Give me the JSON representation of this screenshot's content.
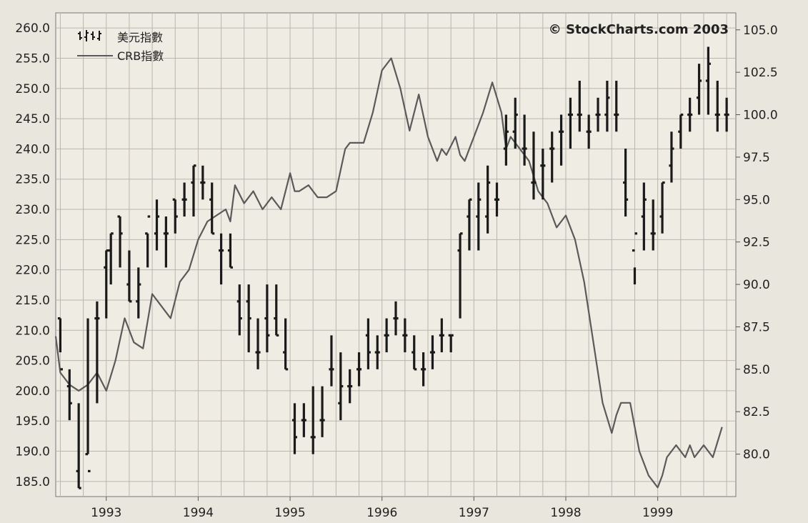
{
  "chart_data": {
    "type": "line",
    "title": "",
    "watermark": "© StockCharts.com 2003",
    "legend": {
      "placement": "top-left",
      "entries": [
        {
          "key": "usd",
          "label": "美元指數",
          "style": "ohlc-bars"
        },
        {
          "key": "crb",
          "label": "CRB指數",
          "style": "line"
        }
      ]
    },
    "x_axis": {
      "ticks": [
        "1993",
        "1994",
        "1995",
        "1996",
        "1997",
        "1998",
        "1999"
      ],
      "range": [
        1992.45,
        1999.85
      ]
    },
    "left_axis": {
      "series": "CRB指數",
      "range": [
        182.5,
        262.5
      ],
      "ticks": [
        "260.0",
        "255.0",
        "250.0",
        "245.0",
        "240.0",
        "235.0",
        "230.0",
        "225.0",
        "220.0",
        "215.0",
        "210.0",
        "205.0",
        "200.0",
        "195.0",
        "190.0",
        "185.0"
      ]
    },
    "right_axis": {
      "series": "美元指數",
      "range": [
        77.5,
        106.0
      ],
      "ticks": [
        "105.0",
        "102.5",
        "100.0",
        "97.5",
        "95.0",
        "92.5",
        "90.0",
        "87.5",
        "85.0",
        "82.5",
        "80.0"
      ]
    },
    "grid": true,
    "colors": {
      "background": "#e9e6dd",
      "plot_background": "#efece4",
      "grid": "#b9b6ae",
      "usd_bars": "#1a1a1a",
      "crb_line": "#5a5a5a"
    },
    "series": [
      {
        "name": "CRB指數",
        "axis": "left",
        "x": [
          1992.45,
          1992.5,
          1992.6,
          1992.7,
          1992.8,
          1992.9,
          1993.0,
          1993.1,
          1993.2,
          1993.3,
          1993.4,
          1993.5,
          1993.6,
          1993.7,
          1993.8,
          1993.9,
          1994.0,
          1994.1,
          1994.2,
          1994.3,
          1994.35,
          1994.4,
          1994.5,
          1994.6,
          1994.7,
          1994.8,
          1994.9,
          1995.0,
          1995.05,
          1995.1,
          1995.2,
          1995.3,
          1995.4,
          1995.5,
          1995.6,
          1995.65,
          1995.7,
          1995.8,
          1995.9,
          1996.0,
          1996.1,
          1996.2,
          1996.3,
          1996.4,
          1996.5,
          1996.6,
          1996.65,
          1996.7,
          1996.8,
          1996.85,
          1996.9,
          1996.95,
          1997.0,
          1997.1,
          1997.2,
          1997.3,
          1997.35,
          1997.4,
          1997.5,
          1997.6,
          1997.7,
          1997.8,
          1997.9,
          1998.0,
          1998.1,
          1998.2,
          1998.3,
          1998.4,
          1998.5,
          1998.55,
          1998.6,
          1998.7,
          1998.8,
          1998.9,
          1999.0,
          1999.05,
          1999.1,
          1999.2,
          1999.3,
          1999.35,
          1999.4,
          1999.5,
          1999.6,
          1999.7
        ],
        "values": [
          209,
          203,
          201,
          200,
          201,
          203,
          200,
          205,
          212,
          208,
          207,
          216,
          214,
          212,
          218,
          220,
          225,
          228,
          229,
          230,
          228,
          234,
          231,
          233,
          230,
          232,
          230,
          236,
          233,
          233,
          234,
          232,
          232,
          233,
          240,
          241,
          241,
          241,
          246,
          253,
          255,
          250,
          243,
          249,
          242,
          238,
          240,
          239,
          242,
          239,
          238,
          240,
          242,
          246,
          251,
          246,
          240,
          242,
          240,
          238,
          233,
          231,
          227,
          229,
          225,
          218,
          208,
          198,
          193,
          196,
          198,
          198,
          190,
          186,
          184,
          186,
          189,
          191,
          189,
          191,
          189,
          191,
          189,
          194
        ]
      },
      {
        "name": "美元指數",
        "axis": "right",
        "bar_width_years": 0.055,
        "x": [
          1992.5,
          1992.6,
          1992.7,
          1992.8,
          1992.9,
          1993.0,
          1993.05,
          1993.15,
          1993.25,
          1993.35,
          1993.45,
          1993.55,
          1993.65,
          1993.75,
          1993.85,
          1993.95,
          1994.05,
          1994.15,
          1994.25,
          1994.35,
          1994.45,
          1994.55,
          1994.65,
          1994.75,
          1994.85,
          1994.95,
          1995.05,
          1995.15,
          1995.25,
          1995.35,
          1995.45,
          1995.55,
          1995.65,
          1995.75,
          1995.85,
          1995.95,
          1996.05,
          1996.15,
          1996.25,
          1996.35,
          1996.45,
          1996.55,
          1996.65,
          1996.75,
          1996.85,
          1996.95,
          1997.05,
          1997.15,
          1997.25,
          1997.35,
          1997.45,
          1997.55,
          1997.65,
          1997.75,
          1997.85,
          1997.95,
          1998.05,
          1998.15,
          1998.25,
          1998.35,
          1998.45,
          1998.55,
          1998.65,
          1998.75,
          1998.85,
          1998.95,
          1999.05,
          1999.15,
          1999.25,
          1999.35,
          1999.45,
          1999.55,
          1999.65,
          1999.75
        ],
        "ohlc": [
          [
            88,
            86,
            88,
            85
          ],
          [
            85,
            82,
            84,
            83
          ],
          [
            83,
            78,
            79,
            78
          ],
          [
            88,
            80,
            80,
            79
          ],
          [
            89,
            83,
            88,
            88
          ],
          [
            92,
            88,
            91,
            92
          ],
          [
            93,
            90,
            92,
            93
          ],
          [
            94,
            91,
            94,
            93
          ],
          [
            92,
            89,
            90,
            89
          ],
          [
            91,
            88,
            89,
            90
          ],
          [
            93,
            91,
            93,
            94
          ],
          [
            95,
            92,
            93,
            94
          ],
          [
            94,
            91,
            93,
            93
          ],
          [
            95,
            93,
            95,
            94
          ],
          [
            96,
            94,
            95,
            95
          ],
          [
            97,
            94,
            96,
            97
          ],
          [
            97,
            95,
            96,
            96
          ],
          [
            96,
            93,
            95,
            93
          ],
          [
            93,
            90,
            92,
            92
          ],
          [
            93,
            91,
            92,
            91
          ],
          [
            90,
            87,
            89,
            88
          ],
          [
            90,
            86,
            89,
            88
          ],
          [
            88,
            85,
            86,
            86
          ],
          [
            90,
            86,
            88,
            87
          ],
          [
            90,
            87,
            88,
            87
          ],
          [
            88,
            85,
            86,
            85
          ],
          [
            83,
            80,
            82,
            81
          ],
          [
            83,
            81,
            82,
            82
          ],
          [
            84,
            80,
            81,
            81
          ],
          [
            84,
            81,
            82,
            82
          ],
          [
            87,
            84,
            85,
            85
          ],
          [
            86,
            82,
            83,
            84
          ],
          [
            85,
            83,
            84,
            84
          ],
          [
            86,
            84,
            85,
            85
          ],
          [
            88,
            85,
            87,
            86
          ],
          [
            87,
            85,
            86,
            86
          ],
          [
            88,
            86,
            87,
            87
          ],
          [
            89,
            87,
            88,
            88
          ],
          [
            88,
            86,
            87,
            87
          ],
          [
            87,
            85,
            86,
            85
          ],
          [
            86,
            84,
            85,
            85
          ],
          [
            87,
            85,
            86,
            86
          ],
          [
            88,
            86,
            87,
            87
          ],
          [
            87,
            86,
            87,
            87
          ],
          [
            93,
            88,
            92,
            93
          ],
          [
            95,
            92,
            94,
            95
          ],
          [
            96,
            92,
            94,
            95
          ],
          [
            97,
            93,
            94,
            96
          ],
          [
            96,
            94,
            95,
            95
          ],
          [
            100,
            97,
            98,
            99
          ],
          [
            101,
            98,
            99,
            100
          ],
          [
            100,
            97,
            98,
            98
          ],
          [
            99,
            95,
            96,
            96
          ],
          [
            98,
            95,
            97,
            97
          ],
          [
            99,
            96,
            98,
            98
          ],
          [
            100,
            97,
            99,
            99
          ],
          [
            101,
            98,
            100,
            100
          ],
          [
            102,
            99,
            100,
            100
          ],
          [
            100,
            98,
            99,
            99
          ],
          [
            101,
            99,
            100,
            100
          ],
          [
            102,
            99,
            100,
            101
          ],
          [
            102,
            99,
            100,
            100
          ],
          [
            98,
            94,
            96,
            95
          ],
          [
            91,
            90,
            92,
            93
          ],
          [
            96,
            92,
            94,
            95
          ],
          [
            95,
            92,
            93,
            93
          ],
          [
            96,
            93,
            94,
            96
          ],
          [
            99,
            96,
            97,
            98
          ],
          [
            100,
            98,
            99,
            100
          ],
          [
            101,
            99,
            100,
            100
          ],
          [
            103,
            100,
            101,
            102
          ],
          [
            104,
            100,
            102,
            103
          ],
          [
            102,
            99,
            100,
            100
          ],
          [
            101,
            99,
            100,
            100
          ]
        ]
      }
    ]
  }
}
